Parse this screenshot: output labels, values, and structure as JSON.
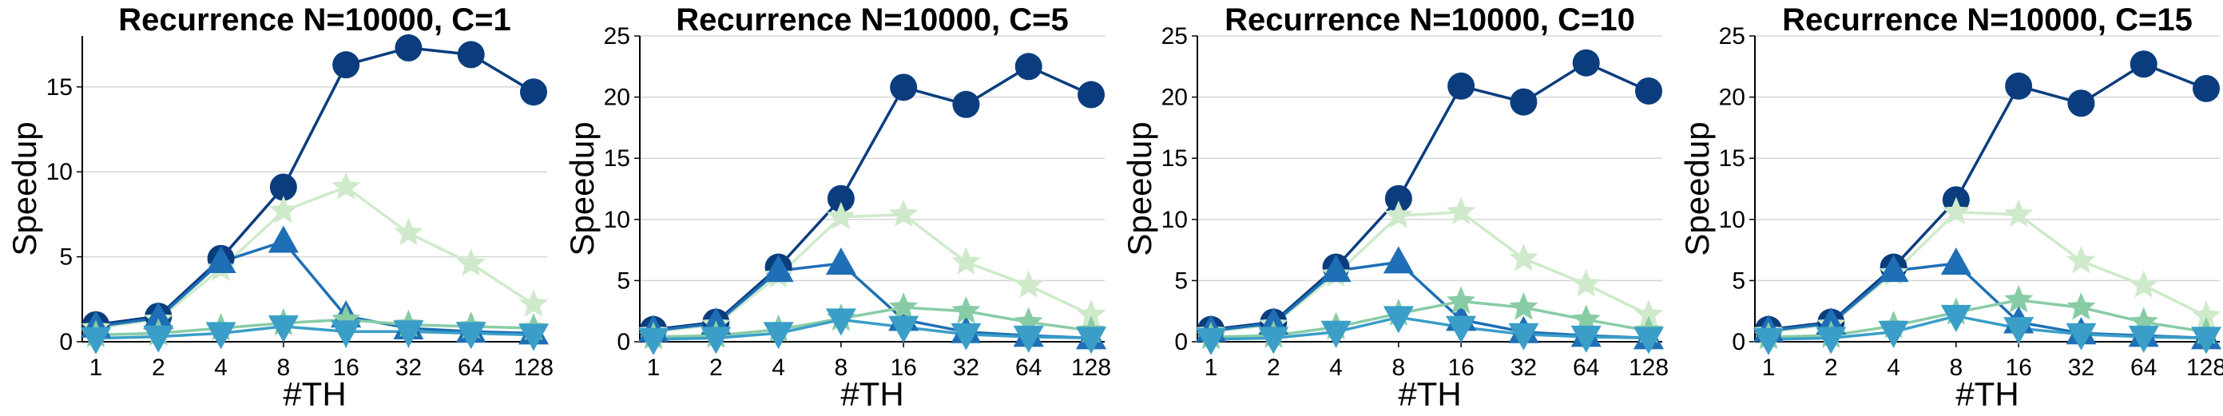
{
  "chart_data": [
    {
      "type": "line",
      "title": "Recurrence N=10000, C=1",
      "xlabel": "#TH",
      "ylabel": "Speedup",
      "categories": [
        "1",
        "2",
        "4",
        "8",
        "16",
        "32",
        "64",
        "128"
      ],
      "ylim": [
        0,
        18
      ],
      "yticks": [
        0,
        5,
        10,
        15
      ],
      "grid": true,
      "series": [
        {
          "color": "#0b3d7e",
          "marker": "circle",
          "values": [
            1.0,
            1.5,
            4.9,
            9.1,
            16.3,
            17.3,
            16.9,
            14.7
          ]
        },
        {
          "color": "#cfeacb",
          "marker": "star",
          "values": [
            0.8,
            1.3,
            4.3,
            7.7,
            9.1,
            6.4,
            4.6,
            2.2
          ]
        },
        {
          "color": "#1e6fb5",
          "marker": "triangle-up",
          "values": [
            0.9,
            1.4,
            4.7,
            5.9,
            1.5,
            0.8,
            0.6,
            0.5
          ]
        },
        {
          "color": "#88cca5",
          "marker": "star",
          "values": [
            0.4,
            0.5,
            0.8,
            1.1,
            1.3,
            1.0,
            0.9,
            0.8
          ]
        },
        {
          "color": "#3a9ec8",
          "marker": "triangle-down",
          "values": [
            0.2,
            0.3,
            0.5,
            0.9,
            0.6,
            0.6,
            0.5,
            0.4
          ]
        }
      ]
    },
    {
      "type": "line",
      "title": "Recurrence N=10000, C=5",
      "xlabel": "#TH",
      "ylabel": "Speedup",
      "categories": [
        "1",
        "2",
        "4",
        "8",
        "16",
        "32",
        "64",
        "128"
      ],
      "ylim": [
        0,
        25
      ],
      "yticks": [
        0,
        5,
        10,
        15,
        20,
        25
      ],
      "grid": true,
      "series": [
        {
          "color": "#0b3d7e",
          "marker": "circle",
          "values": [
            1.0,
            1.6,
            6.1,
            11.7,
            20.8,
            19.4,
            22.5,
            20.2
          ]
        },
        {
          "color": "#cfeacb",
          "marker": "star",
          "values": [
            0.8,
            1.4,
            5.4,
            10.2,
            10.4,
            6.5,
            4.6,
            2.2
          ]
        },
        {
          "color": "#1e6fb5",
          "marker": "triangle-up",
          "values": [
            0.9,
            1.5,
            5.8,
            6.4,
            1.8,
            0.8,
            0.5,
            0.3
          ]
        },
        {
          "color": "#88cca5",
          "marker": "star",
          "values": [
            0.4,
            0.5,
            1.0,
            1.9,
            2.8,
            2.5,
            1.6,
            0.9
          ]
        },
        {
          "color": "#3a9ec8",
          "marker": "triangle-down",
          "values": [
            0.2,
            0.3,
            0.7,
            1.8,
            1.2,
            0.6,
            0.4,
            0.3
          ]
        }
      ]
    },
    {
      "type": "line",
      "title": "Recurrence N=10000, C=10",
      "xlabel": "#TH",
      "ylabel": "Speedup",
      "categories": [
        "1",
        "2",
        "4",
        "8",
        "16",
        "32",
        "64",
        "128"
      ],
      "ylim": [
        0,
        25
      ],
      "yticks": [
        0,
        5,
        10,
        15,
        20,
        25
      ],
      "grid": true,
      "series": [
        {
          "color": "#0b3d7e",
          "marker": "circle",
          "values": [
            1.0,
            1.6,
            6.1,
            11.7,
            20.9,
            19.6,
            22.8,
            20.5
          ]
        },
        {
          "color": "#cfeacb",
          "marker": "star",
          "values": [
            0.8,
            1.4,
            5.5,
            10.3,
            10.6,
            6.8,
            4.7,
            2.2
          ]
        },
        {
          "color": "#1e6fb5",
          "marker": "triangle-up",
          "values": [
            0.9,
            1.5,
            5.8,
            6.5,
            1.8,
            0.8,
            0.5,
            0.3
          ]
        },
        {
          "color": "#88cca5",
          "marker": "star",
          "values": [
            0.4,
            0.5,
            1.2,
            2.3,
            3.3,
            2.8,
            1.8,
            0.9
          ]
        },
        {
          "color": "#3a9ec8",
          "marker": "triangle-down",
          "values": [
            0.2,
            0.3,
            0.8,
            2.0,
            1.2,
            0.6,
            0.4,
            0.3
          ]
        }
      ]
    },
    {
      "type": "line",
      "title": "Recurrence N=10000, C=15",
      "xlabel": "#TH",
      "ylabel": "Speedup",
      "categories": [
        "1",
        "2",
        "4",
        "8",
        "16",
        "32",
        "64",
        "128"
      ],
      "ylim": [
        0,
        25
      ],
      "yticks": [
        0,
        5,
        10,
        15,
        20,
        25
      ],
      "grid": true,
      "series": [
        {
          "color": "#0b3d7e",
          "marker": "circle",
          "values": [
            1.0,
            1.6,
            6.1,
            11.6,
            20.9,
            19.5,
            22.7,
            20.7
          ]
        },
        {
          "color": "#cfeacb",
          "marker": "star",
          "values": [
            0.8,
            1.4,
            5.6,
            10.6,
            10.4,
            6.6,
            4.6,
            2.1
          ]
        },
        {
          "color": "#1e6fb5",
          "marker": "triangle-up",
          "values": [
            0.9,
            1.5,
            5.8,
            6.4,
            1.6,
            0.7,
            0.5,
            0.3
          ]
        },
        {
          "color": "#88cca5",
          "marker": "star",
          "values": [
            0.4,
            0.5,
            1.3,
            2.4,
            3.4,
            2.8,
            1.6,
            0.8
          ]
        },
        {
          "color": "#3a9ec8",
          "marker": "triangle-down",
          "values": [
            0.2,
            0.3,
            0.8,
            2.1,
            1.1,
            0.6,
            0.4,
            0.3
          ]
        }
      ]
    }
  ]
}
